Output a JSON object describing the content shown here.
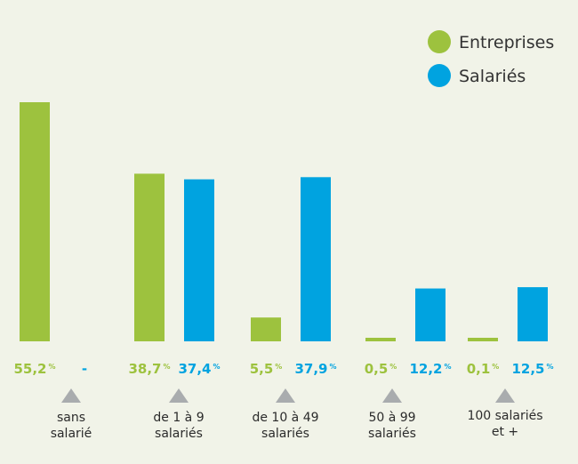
{
  "chart_data": {
    "type": "bar",
    "categories": [
      [
        "sans",
        "salarié"
      ],
      [
        "de 1 à 9",
        "salariés"
      ],
      [
        "de 10 à 49",
        "salariés"
      ],
      [
        "50 à 99",
        "salariés"
      ],
      [
        "100 salariés",
        "et +"
      ]
    ],
    "series": [
      {
        "name": "Entreprises",
        "color": "#9dc23e",
        "values": [
          55.2,
          38.7,
          5.5,
          0.5,
          0.1
        ],
        "labels": [
          "55,2",
          "38,7",
          "5,5",
          "0,5",
          "0,1"
        ]
      },
      {
        "name": "Salariés",
        "color": "#00a3e0",
        "values": [
          null,
          37.4,
          37.9,
          12.2,
          12.5
        ],
        "labels": [
          "-",
          "37,4",
          "37,9",
          "12,2",
          "12,5"
        ]
      }
    ],
    "unit": "%",
    "ylim": [
      0,
      55.2
    ],
    "legend_position": "top-right",
    "grid": false,
    "xlabel": "",
    "ylabel": "",
    "title": ""
  },
  "colors": {
    "background": "#f1f3e8",
    "marker": "#a9acae",
    "divider": "#d9dbd0"
  }
}
